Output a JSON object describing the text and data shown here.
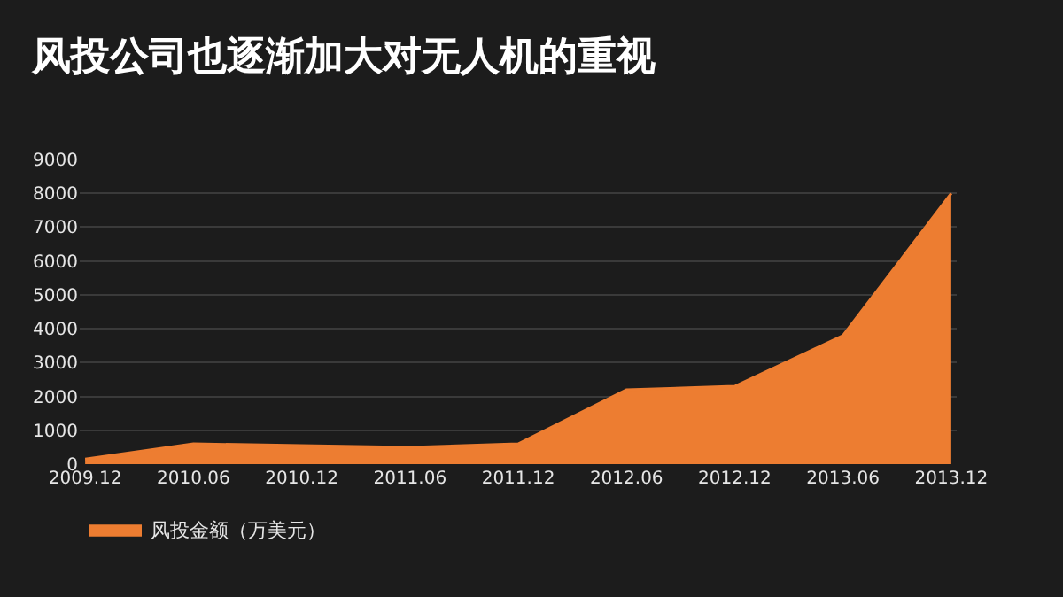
{
  "chart_data": {
    "type": "area",
    "title": "风投公司也逐渐加大对无人机的重视",
    "categories": [
      "2009.12",
      "2010.06",
      "2010.12",
      "2011.06",
      "2011.12",
      "2012.06",
      "2012.12",
      "2013.06",
      "2013.12"
    ],
    "series": [
      {
        "name": "风投金额（万美元）",
        "color": "#ed7d31",
        "values": [
          150,
          600,
          550,
          500,
          600,
          2200,
          2300,
          3800,
          8000
        ]
      }
    ],
    "ylim": [
      0,
      9000
    ],
    "yticks": [
      0,
      1000,
      2000,
      3000,
      4000,
      5000,
      6000,
      7000,
      8000,
      9000
    ],
    "grid": "y",
    "legend": "bottom left"
  }
}
